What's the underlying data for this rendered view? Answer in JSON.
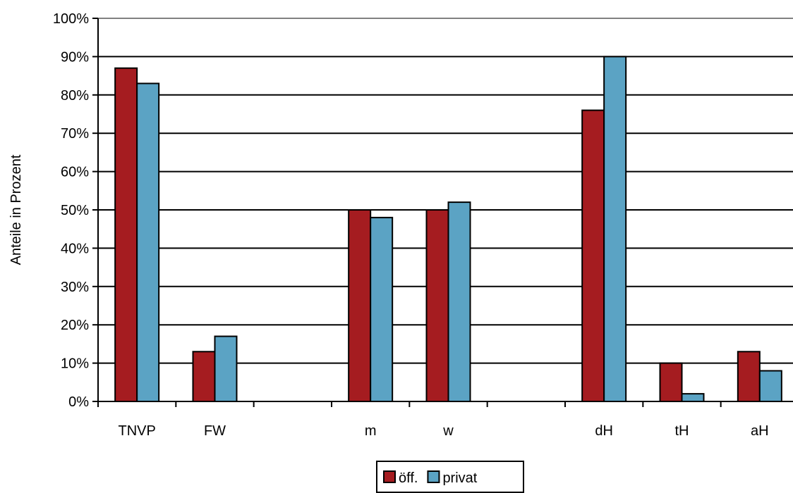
{
  "chart_data": {
    "type": "bar",
    "categories": [
      "TNVP",
      "FW",
      "",
      "m",
      "w",
      "",
      "dH",
      "tH",
      "aH"
    ],
    "series": [
      {
        "name": "öff.",
        "values": [
          87,
          13,
          null,
          50,
          50,
          null,
          76,
          10,
          13
        ],
        "color": "#A51C20"
      },
      {
        "name": "privat",
        "values": [
          83,
          17,
          null,
          48,
          52,
          null,
          90,
          2,
          8
        ],
        "color": "#5BA3C4"
      }
    ],
    "yticks": [
      "0%",
      "10%",
      "20%",
      "30%",
      "40%",
      "50%",
      "60%",
      "70%",
      "80%",
      "90%",
      "100%"
    ],
    "ylabel": "Anteile in Prozent",
    "ylim": [
      0,
      100
    ],
    "grid": true,
    "legend_position": "bottom-center"
  }
}
